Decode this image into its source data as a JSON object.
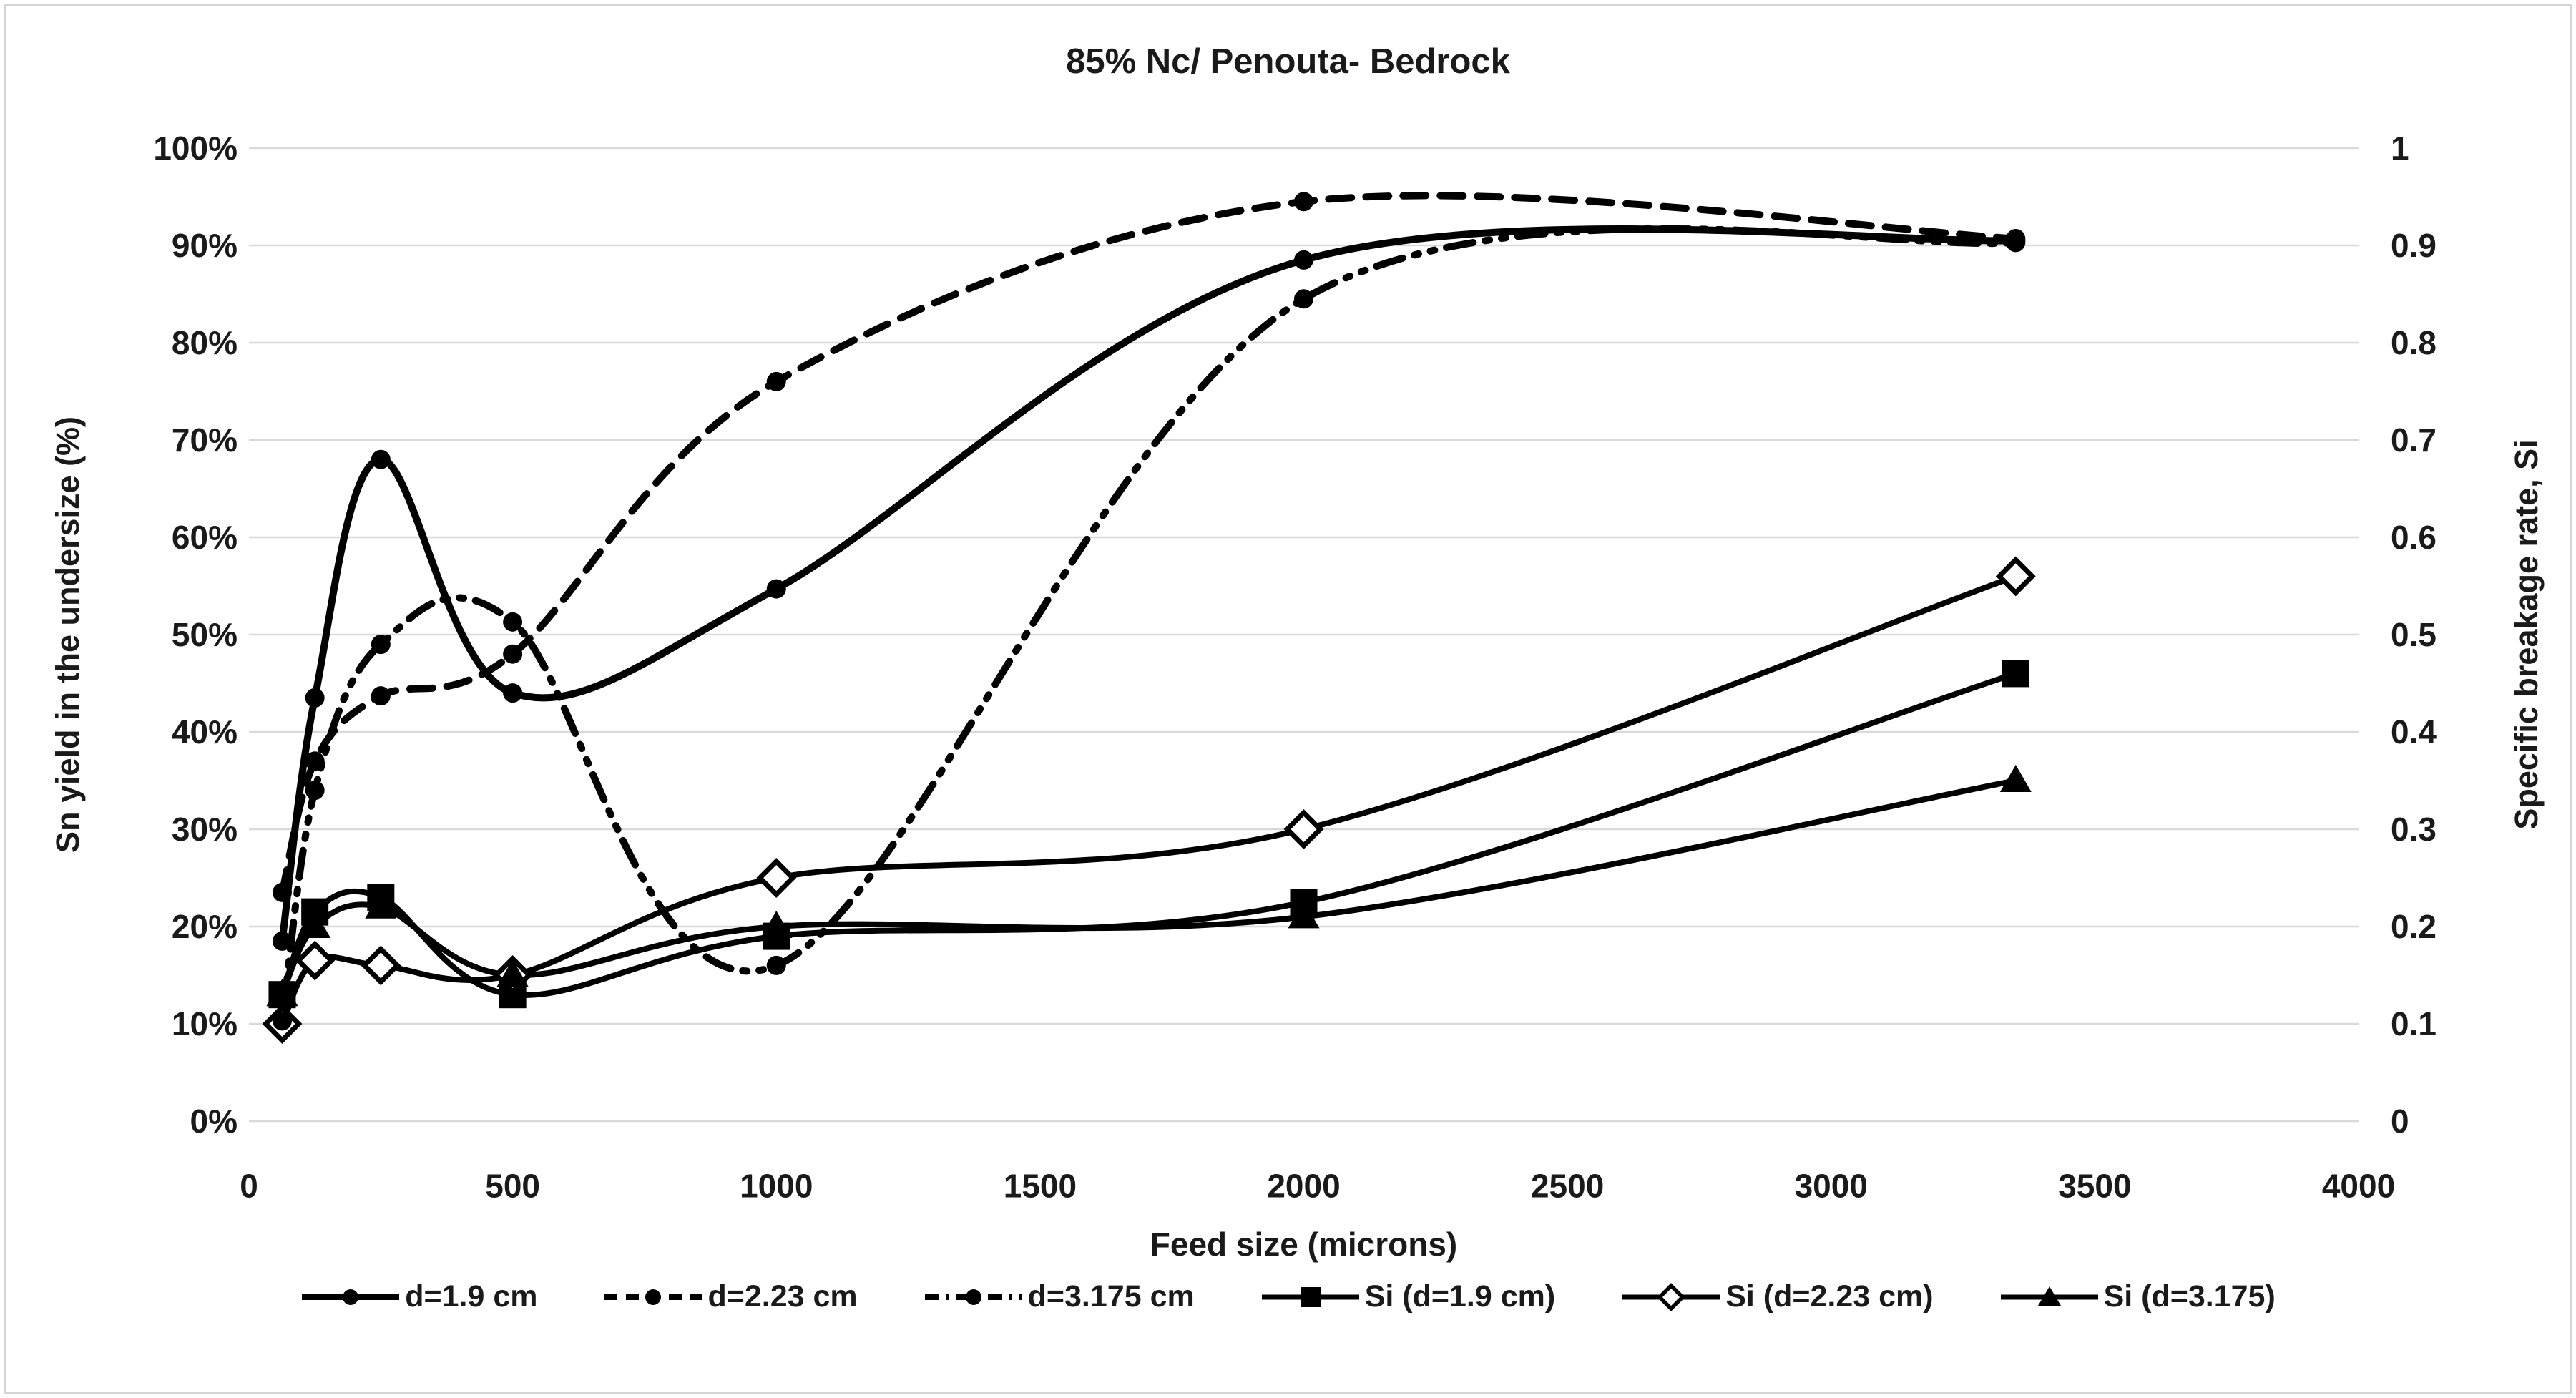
{
  "chart_data": {
    "type": "line",
    "title": "85% Nc/ Penouta- Bedrock",
    "xlabel": "Feed size (microns)",
    "ylabel_left": "Sn yield in the undersize (%)",
    "ylabel_right": "Specific breakage rate, Si",
    "xlim": [
      0,
      4000
    ],
    "ylim_left_percent": [
      0,
      100
    ],
    "ylim_right": [
      0,
      1
    ],
    "grid": "horizontal-only",
    "legend_position": "bottom",
    "x_tick_values": [
      0,
      500,
      1000,
      1500,
      2000,
      2500,
      3000,
      3500,
      4000
    ],
    "x_tick_labels": [
      "0",
      "500",
      "1000",
      "1500",
      "2000",
      "2500",
      "3000",
      "3500",
      "4000"
    ],
    "left_tick_values": [
      0,
      10,
      20,
      30,
      40,
      50,
      60,
      70,
      80,
      90,
      100
    ],
    "left_tick_labels": [
      "0%",
      "10%",
      "20%",
      "30%",
      "40%",
      "50%",
      "60%",
      "70%",
      "80%",
      "90%",
      "100%"
    ],
    "right_tick_values": [
      0,
      0.1,
      0.2,
      0.3,
      0.4,
      0.5,
      0.6,
      0.7,
      0.8,
      0.9,
      1
    ],
    "right_tick_labels": [
      "0",
      "0.1",
      "0.2",
      "0.3",
      "0.4",
      "0.5",
      "0.6",
      "0.7",
      "0.8",
      "0.9",
      "1"
    ],
    "series": [
      {
        "name": "d=1.9 cm",
        "axis": "left",
        "line": "solid",
        "marker": "dot",
        "x": [
          63,
          125,
          250,
          500,
          1000,
          2000,
          3350
        ],
        "y": [
          18.5,
          43.5,
          68,
          44,
          54.7,
          88.5,
          90.5
        ]
      },
      {
        "name": "d=2.23 cm",
        "axis": "left",
        "line": "dashed",
        "marker": "dot",
        "x": [
          63,
          125,
          250,
          500,
          1000,
          2000,
          3350
        ],
        "y": [
          23.5,
          37,
          43.7,
          48,
          76,
          94.5,
          90.7
        ]
      },
      {
        "name": "d=3.175 cm",
        "axis": "left",
        "line": "dash-dot-dot",
        "marker": "dot",
        "x": [
          63,
          125,
          250,
          500,
          1000,
          2000,
          3350
        ],
        "y": [
          10.3,
          34,
          49,
          51.3,
          16,
          84.5,
          90.3
        ]
      },
      {
        "name": "Si (d=1.9 cm)",
        "axis": "right",
        "line": "solid",
        "marker": "square",
        "x": [
          63,
          125,
          250,
          500,
          1000,
          2000,
          3350
        ],
        "y": [
          0.13,
          0.215,
          0.23,
          0.13,
          0.19,
          0.225,
          0.46
        ]
      },
      {
        "name": "Si (d=2.23 cm)",
        "axis": "right",
        "line": "solid",
        "marker": "diamond-open",
        "x": [
          63,
          125,
          250,
          500,
          1000,
          2000,
          3350
        ],
        "y": [
          0.1,
          0.165,
          0.16,
          0.15,
          0.25,
          0.3,
          0.56
        ]
      },
      {
        "name": "Si (d=3.175)",
        "axis": "right",
        "line": "solid",
        "marker": "triangle",
        "x": [
          63,
          125,
          250,
          500,
          1000,
          2000,
          3350
        ],
        "y": [
          0.13,
          0.2,
          0.22,
          0.15,
          0.2,
          0.21,
          0.35
        ]
      }
    ],
    "colors": {
      "series": "#000000",
      "grid": "#d9d9d9",
      "background": "#ffffff",
      "figure_border": "#d4d4d4",
      "text": "#1a1a1a"
    }
  }
}
